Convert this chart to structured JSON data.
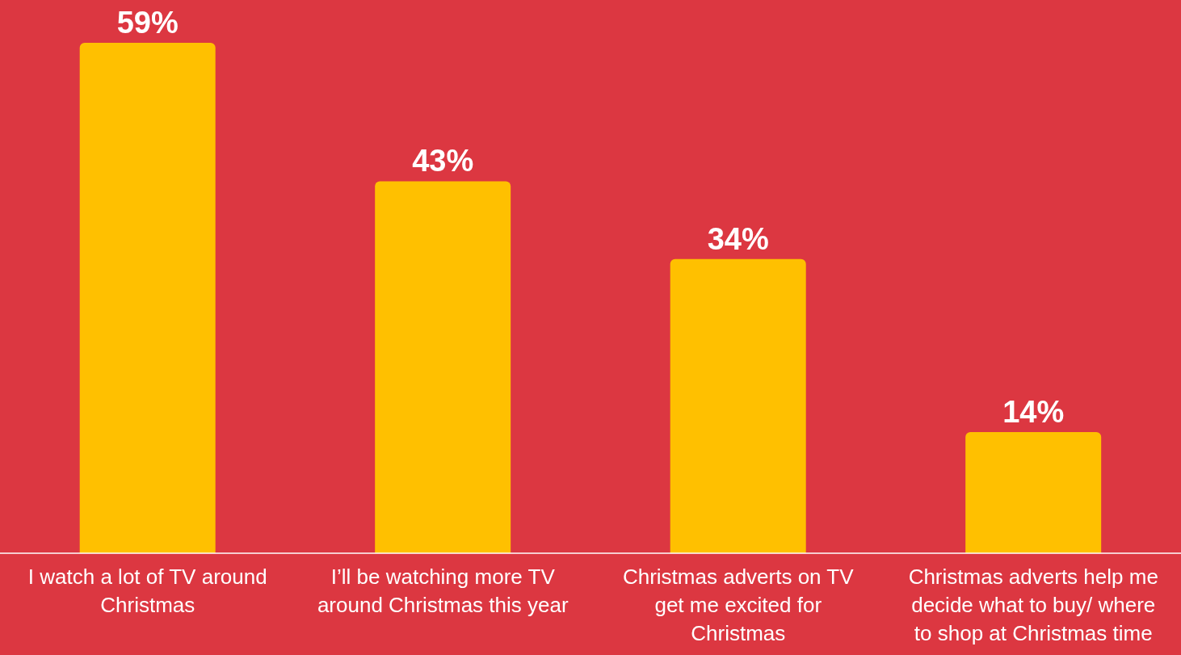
{
  "chart_data": {
    "type": "bar",
    "categories": [
      "I watch a lot of TV around Christmas",
      "I’ll be watching more TV around Christmas this year",
      "Christmas adverts on TV get me excited for Christmas",
      "Christmas adverts help me decide what to buy/ where to shop at Christmas time"
    ],
    "values": [
      59,
      43,
      34,
      14
    ],
    "color": "#ffc000",
    "value_labels": [
      "59%",
      "43%",
      "34%",
      "14%"
    ],
    "grid": false,
    "legend": false
  }
}
